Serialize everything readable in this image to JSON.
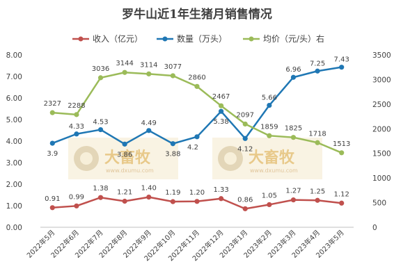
{
  "chart_data": {
    "type": "line",
    "title": "罗牛山近1年生猪月销售情况",
    "categories": [
      "2022年5月",
      "2022年6月",
      "2022年7月",
      "2022年8月",
      "2022年9月",
      "2022年10月",
      "2022年11月",
      "2022年12月",
      "2023年1月",
      "2023年2月",
      "2023年3月",
      "2023年4月",
      "2023年5月"
    ],
    "series": [
      {
        "name": "收入（亿元）",
        "axis": "left",
        "color": "#c0504d",
        "values": [
          0.91,
          0.99,
          1.38,
          1.21,
          1.4,
          1.19,
          1.2,
          1.33,
          0.86,
          1.05,
          1.27,
          1.25,
          1.12
        ],
        "labels": [
          "0.91",
          "0.99",
          "1.38",
          "1.21",
          "1.40",
          "1.19",
          "1.20",
          "1.33",
          "0.86",
          "1.05",
          "1.27",
          "1.25",
          "1.12"
        ]
      },
      {
        "name": "数量（万头）",
        "axis": "left",
        "color": "#1f77b4",
        "values": [
          3.9,
          4.33,
          4.53,
          3.86,
          4.49,
          3.88,
          4.2,
          5.38,
          4.12,
          5.66,
          6.96,
          7.25,
          7.43
        ],
        "labels": [
          "3.9",
          "4.33",
          "4.53",
          "3.86",
          "4.49",
          "3.88",
          "4.2",
          "5.38",
          "4.12",
          "5.66",
          "6.96",
          "7.25",
          "7.43"
        ]
      },
      {
        "name": "均价（元/头）右",
        "axis": "right",
        "color": "#9bbb59",
        "values": [
          2327,
          2288,
          3036,
          3144,
          3114,
          3077,
          2860,
          2467,
          2097,
          1859,
          1825,
          1718,
          1513
        ],
        "labels": [
          "2327",
          "2288",
          "3036",
          "3144",
          "3114",
          "3077",
          "2860",
          "2467",
          "2097",
          "1859",
          "1825",
          "1718",
          "1513"
        ]
      }
    ],
    "y_left": {
      "min": 0,
      "max": 8,
      "ticks": [
        "0.00",
        "1.00",
        "2.00",
        "3.00",
        "4.00",
        "5.00",
        "6.00",
        "7.00",
        "8.00"
      ]
    },
    "y_right": {
      "min": 0,
      "max": 3500,
      "ticks": [
        "0",
        "500",
        "1000",
        "1500",
        "2000",
        "2500",
        "3000",
        "3500"
      ]
    },
    "grid": false,
    "legend_position": "top",
    "watermark": {
      "brand": "大畜牧",
      "url": "www.dxumu.com"
    }
  }
}
